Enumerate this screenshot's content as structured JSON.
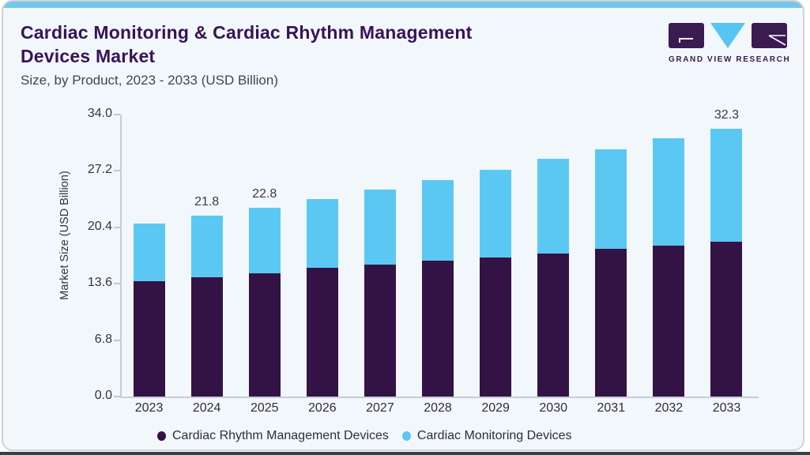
{
  "header": {
    "title_line1": "Cardiac Monitoring & Cardiac Rhythm Management",
    "title_line2": "Devices Market",
    "subtitle": "Size, by Product, 2023 - 2033 (USD Billion)"
  },
  "logo": {
    "brand": "GRAND VIEW RESEARCH"
  },
  "chart_data": {
    "type": "bar",
    "stacked": true,
    "title": "Cardiac Monitoring & Cardiac Rhythm Management Devices Market",
    "ylabel": "Market Size (USD Billion)",
    "xlabel": "",
    "categories": [
      "2023",
      "2024",
      "2025",
      "2026",
      "2027",
      "2028",
      "2029",
      "2030",
      "2031",
      "2032",
      "2033"
    ],
    "series": [
      {
        "name": "Cardiac Rhythm Management Devices",
        "color": "#331246",
        "values": [
          13.9,
          14.4,
          14.9,
          15.5,
          15.9,
          16.4,
          16.8,
          17.2,
          17.8,
          18.2,
          18.7
        ]
      },
      {
        "name": "Cardiac Monitoring Devices",
        "color": "#5bc8f3",
        "values": [
          7.0,
          7.4,
          7.9,
          8.3,
          9.1,
          9.7,
          10.5,
          11.5,
          12.0,
          12.9,
          13.6
        ]
      }
    ],
    "totals": [
      20.9,
      21.8,
      22.8,
      23.8,
      25.0,
      26.1,
      27.3,
      28.7,
      29.8,
      31.1,
      32.3
    ],
    "bar_labels": [
      "",
      "21.8",
      "22.8",
      "",
      "",
      "",
      "",
      "",
      "",
      "",
      "32.3"
    ],
    "y_ticks": [
      "0.0",
      "6.8",
      "13.6",
      "20.4",
      "27.2",
      "34.0"
    ],
    "ylim": [
      0,
      34
    ],
    "grid": false,
    "legend_position": "bottom"
  },
  "colors": {
    "accent_strip": "#74c7ec",
    "card_background": "#f2f7fb",
    "title": "#371358",
    "axis_line": "#c9cdd3",
    "logo_purple": "#3b1b52",
    "logo_blue": "#55c5f1"
  }
}
